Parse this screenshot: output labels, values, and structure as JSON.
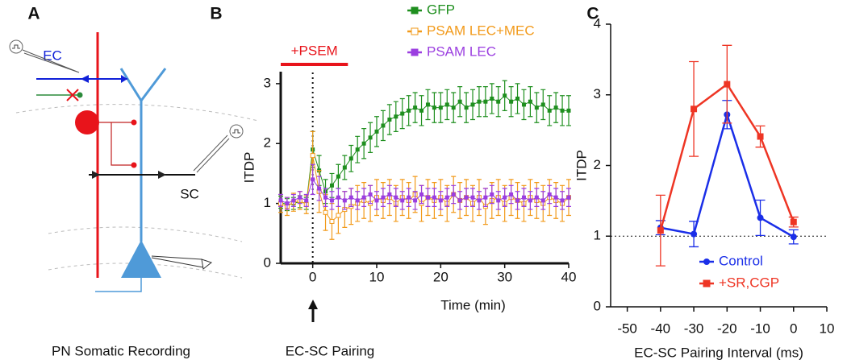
{
  "panel_a": {
    "label": "A",
    "ec_label": "EC",
    "sc_label": "SC",
    "caption": "PN Somatic Recording"
  },
  "chart_data": [
    {
      "type": "line",
      "panel_label": "B",
      "caption": "EC-SC Pairing",
      "xlabel": "Time (min)",
      "ylabel": "ITDP",
      "x": [
        -5,
        -4,
        -3,
        -2,
        -1,
        0,
        1,
        2,
        3,
        4,
        5,
        6,
        7,
        8,
        9,
        10,
        11,
        12,
        13,
        14,
        15,
        16,
        17,
        18,
        19,
        20,
        21,
        22,
        23,
        24,
        25,
        26,
        27,
        28,
        29,
        30,
        31,
        32,
        33,
        34,
        35,
        36,
        37,
        38,
        39,
        40
      ],
      "series": [
        {
          "name": "GFP",
          "color": "#1f8f1f",
          "marker": "square",
          "values": [
            1.02,
            0.98,
            1.0,
            1.03,
            1.0,
            1.9,
            1.55,
            1.2,
            1.3,
            1.45,
            1.6,
            1.75,
            1.9,
            2.0,
            2.1,
            2.2,
            2.3,
            2.4,
            2.45,
            2.5,
            2.55,
            2.6,
            2.55,
            2.65,
            2.6,
            2.6,
            2.65,
            2.6,
            2.7,
            2.6,
            2.65,
            2.7,
            2.7,
            2.75,
            2.7,
            2.8,
            2.7,
            2.75,
            2.65,
            2.7,
            2.6,
            2.65,
            2.55,
            2.6,
            2.55,
            2.55
          ],
          "errors": [
            0.1,
            0.1,
            0.1,
            0.1,
            0.1,
            0.3,
            0.25,
            0.2,
            0.2,
            0.2,
            0.2,
            0.22,
            0.22,
            0.25,
            0.25,
            0.25,
            0.25,
            0.25,
            0.25,
            0.25,
            0.25,
            0.25,
            0.25,
            0.25,
            0.25,
            0.25,
            0.25,
            0.25,
            0.25,
            0.25,
            0.25,
            0.25,
            0.25,
            0.25,
            0.25,
            0.25,
            0.25,
            0.25,
            0.25,
            0.25,
            0.25,
            0.25,
            0.25,
            0.25,
            0.25,
            0.25
          ]
        },
        {
          "name": "PSAM LEC+MEC",
          "color": "#f29a1a",
          "marker": "square-open",
          "values": [
            1.0,
            0.95,
            1.02,
            1.05,
            0.98,
            1.8,
            1.2,
            0.85,
            0.7,
            0.8,
            0.9,
            0.95,
            1.0,
            1.05,
            1.0,
            1.1,
            1.05,
            1.1,
            1.0,
            1.1,
            1.05,
            1.15,
            1.0,
            1.1,
            1.05,
            1.1,
            1.0,
            1.15,
            1.05,
            1.1,
            1.0,
            1.1,
            0.95,
            1.05,
            1.1,
            1.0,
            1.1,
            1.05,
            1.0,
            1.1,
            1.05,
            1.0,
            1.1,
            1.05,
            1.0,
            1.1
          ],
          "errors": [
            0.15,
            0.15,
            0.15,
            0.15,
            0.15,
            0.4,
            0.35,
            0.3,
            0.3,
            0.3,
            0.3,
            0.3,
            0.3,
            0.3,
            0.3,
            0.3,
            0.3,
            0.3,
            0.3,
            0.3,
            0.3,
            0.3,
            0.3,
            0.3,
            0.3,
            0.3,
            0.3,
            0.3,
            0.3,
            0.3,
            0.3,
            0.3,
            0.3,
            0.3,
            0.3,
            0.3,
            0.3,
            0.3,
            0.3,
            0.3,
            0.3,
            0.3,
            0.3,
            0.3,
            0.3,
            0.3
          ]
        },
        {
          "name": "PSAM LEC",
          "color": "#9b3ee0",
          "marker": "square",
          "values": [
            1.05,
            1.0,
            1.05,
            1.1,
            1.05,
            1.4,
            1.25,
            1.1,
            1.05,
            1.1,
            1.05,
            1.1,
            1.05,
            1.1,
            1.15,
            1.05,
            1.1,
            1.15,
            1.1,
            1.05,
            1.1,
            1.05,
            1.15,
            1.1,
            1.1,
            1.05,
            1.1,
            1.15,
            1.05,
            1.1,
            1.1,
            1.05,
            1.1,
            1.15,
            1.05,
            1.1,
            1.15,
            1.05,
            1.1,
            1.05,
            1.1,
            1.05,
            1.15,
            1.1,
            1.05,
            1.1
          ],
          "errors": [
            0.1,
            0.1,
            0.1,
            0.1,
            0.1,
            0.25,
            0.2,
            0.15,
            0.15,
            0.15,
            0.15,
            0.15,
            0.15,
            0.15,
            0.15,
            0.15,
            0.15,
            0.15,
            0.15,
            0.15,
            0.15,
            0.15,
            0.15,
            0.15,
            0.15,
            0.15,
            0.15,
            0.15,
            0.15,
            0.15,
            0.15,
            0.15,
            0.15,
            0.15,
            0.15,
            0.15,
            0.15,
            0.15,
            0.15,
            0.15,
            0.15,
            0.15,
            0.15,
            0.15,
            0.15,
            0.15
          ]
        }
      ],
      "xlim": [
        -5,
        40
      ],
      "ylim": [
        0,
        3.2
      ],
      "xticks": [
        0,
        10,
        20,
        30,
        40
      ],
      "yticks": [
        0,
        1,
        2,
        3
      ],
      "legend": "above",
      "vline": 0,
      "bar_annotation": {
        "text": "+PSEM",
        "from": -5,
        "to": 5.5,
        "color": "#e8141b"
      }
    },
    {
      "type": "line",
      "panel_label": "C",
      "xlabel": "EC-SC Pairing Interval (ms)",
      "ylabel": "ITDP",
      "x": [
        -40,
        -30,
        -20,
        -10,
        0
      ],
      "series": [
        {
          "name": "Control",
          "color": "#1a2ee8",
          "marker": "circle",
          "values": [
            1.12,
            1.03,
            2.72,
            1.26,
            0.99
          ],
          "errors": [
            0.1,
            0.18,
            0.2,
            0.25,
            0.1
          ]
        },
        {
          "name": "+SR,CGP",
          "color": "#ee3524",
          "marker": "square",
          "values": [
            1.08,
            2.8,
            3.15,
            2.41,
            1.2
          ],
          "errors": [
            0.5,
            0.67,
            0.55,
            0.15,
            0.07
          ]
        }
      ],
      "xlim": [
        -55,
        10
      ],
      "ylim": [
        0,
        4
      ],
      "xticks": [
        -50,
        -40,
        -30,
        -20,
        -10,
        0,
        10
      ],
      "yticks": [
        0,
        1,
        2,
        3,
        4
      ],
      "legend": "lower center",
      "hline": 1
    }
  ]
}
